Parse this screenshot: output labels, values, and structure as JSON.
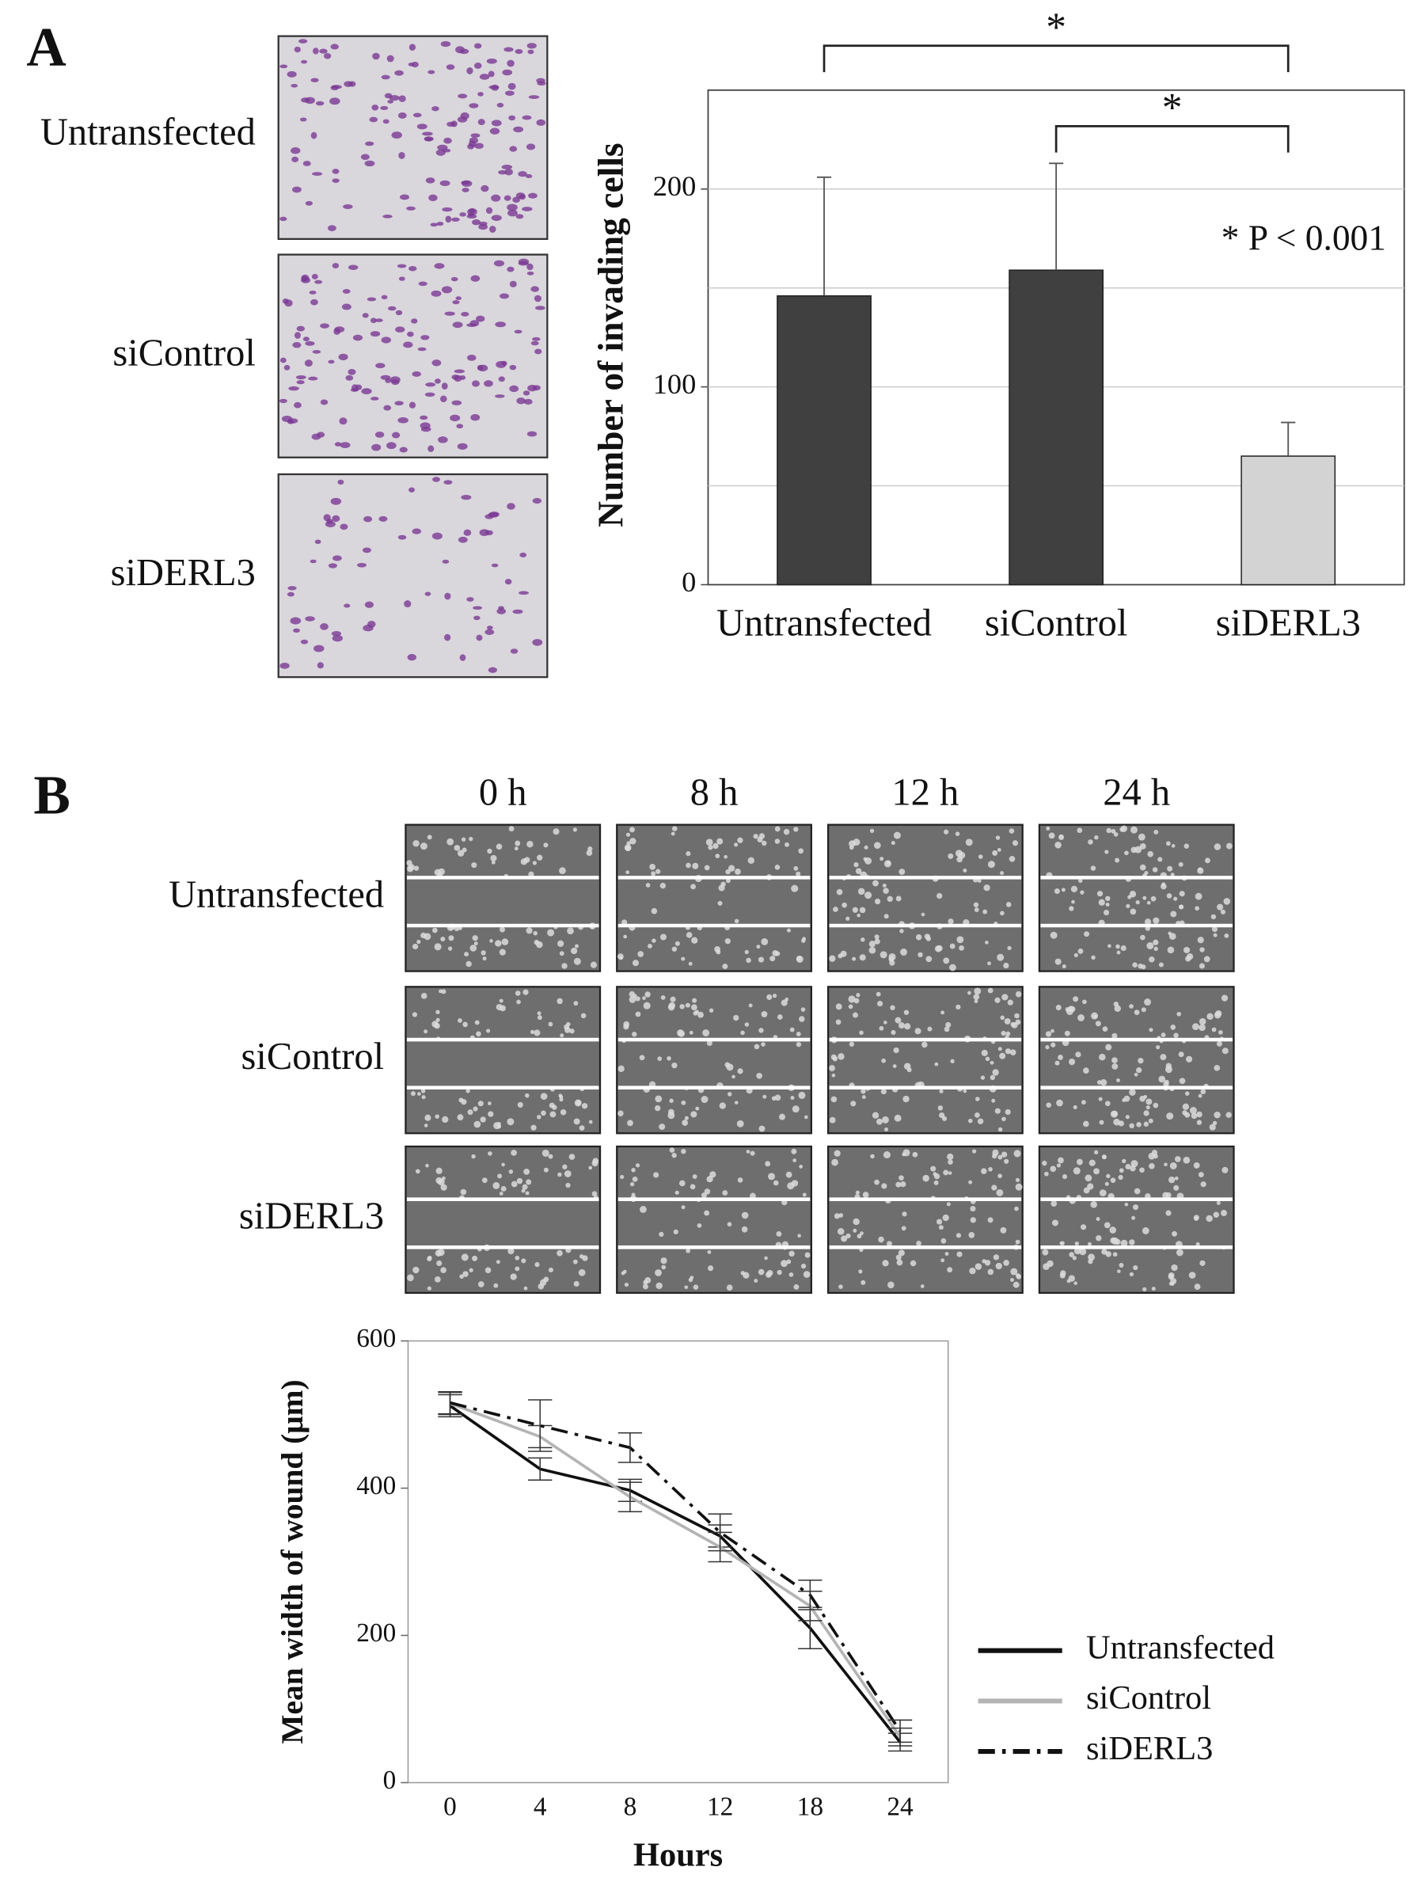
{
  "panel_labels": [
    "A",
    "B"
  ],
  "panel_a_images": {
    "row_labels": [
      "Untransfected",
      "siControl",
      "siDERL3"
    ]
  },
  "panel_b_images": {
    "column_labels": [
      "0 h",
      "8 h",
      "12 h",
      "24 h"
    ],
    "row_labels": [
      "Untransfected",
      "siControl",
      "siDERL3"
    ]
  },
  "chart_data": [
    {
      "type": "bar",
      "ylabel": "Number of invading cells",
      "categories": [
        "Untransfected",
        "siControl",
        "siDERL3"
      ],
      "values": [
        146,
        159,
        65
      ],
      "errors": [
        60,
        54,
        17
      ],
      "colors": [
        "#404040",
        "#404040",
        "#d3d3d3"
      ],
      "ylim": [
        0,
        250
      ],
      "yticks": [
        0,
        100,
        200
      ],
      "minor_gridlines": [
        50,
        150
      ],
      "grid": true,
      "comparisons": [
        {
          "from": 0,
          "to": 2,
          "label": "*"
        },
        {
          "from": 1,
          "to": 2,
          "label": "*"
        }
      ],
      "annotation": "* P < 0.001"
    },
    {
      "type": "line",
      "xlabel": "Hours",
      "ylabel": "Mean width of wound (μm)",
      "categories": [
        "0",
        "4",
        "8",
        "12",
        "18",
        "24"
      ],
      "ylim": [
        0,
        600
      ],
      "yticks": [
        0,
        200,
        400,
        600
      ],
      "legend": "right",
      "series": [
        {
          "name": "Untransfected",
          "color": "#111111",
          "line_style": "solid",
          "values": [
            512,
            426,
            397,
            335,
            210,
            55
          ],
          "errors": [
            15,
            15,
            15,
            15,
            28,
            12
          ]
        },
        {
          "name": "siControl",
          "color": "#b4b4b4",
          "line_style": "solid",
          "values": [
            515,
            470,
            388,
            320,
            240,
            62
          ],
          "errors": [
            15,
            15,
            20,
            20,
            20,
            12
          ]
        },
        {
          "name": "siDERL3",
          "color": "#111111",
          "line_style": "dash-dot",
          "values": [
            516,
            485,
            455,
            340,
            255,
            70
          ],
          "errors": [
            15,
            35,
            20,
            25,
            20,
            15
          ]
        }
      ]
    }
  ]
}
